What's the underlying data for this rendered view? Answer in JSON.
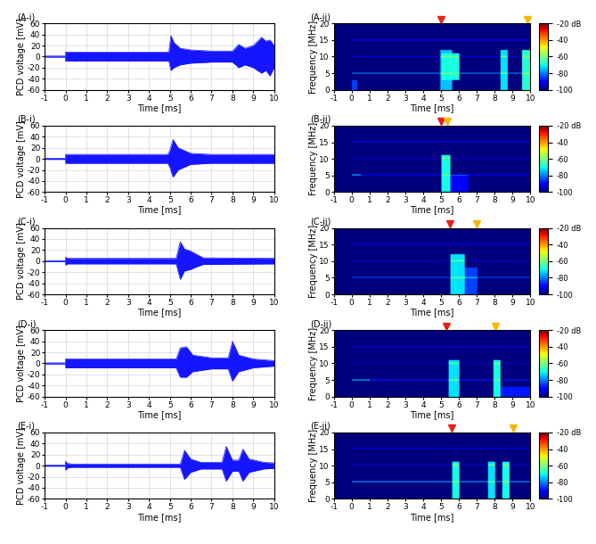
{
  "chart_data": [
    {
      "type": "area",
      "title": "(A-i)",
      "xlabel": "Time [ms]",
      "ylabel": "PCD voltage [mV]",
      "color": "#1515ff",
      "xlim": [
        -1,
        10
      ],
      "xticks": [
        -1,
        0,
        1,
        2,
        3,
        4,
        5,
        6,
        7,
        8,
        9,
        10
      ],
      "ylim": [
        -60,
        60
      ],
      "yticks": [
        -60,
        -40,
        -20,
        0,
        20,
        40,
        60
      ],
      "x": [
        -1,
        -0.01,
        0,
        4.95,
        5.05,
        5.2,
        5.5,
        6.0,
        7.0,
        8.0,
        8.3,
        8.6,
        9.0,
        9.4,
        9.6,
        9.8,
        10
      ],
      "upper": [
        1,
        1,
        8,
        8,
        38,
        25,
        15,
        12,
        10,
        10,
        22,
        15,
        20,
        35,
        28,
        30,
        20
      ],
      "lower": [
        -1,
        -1,
        -8,
        -8,
        -25,
        -20,
        -15,
        -12,
        -10,
        -10,
        -20,
        -15,
        -20,
        -30,
        -25,
        -35,
        -20
      ]
    },
    {
      "type": "heatmap",
      "title": "(A-ii)",
      "xlabel": "Time [ms]",
      "ylabel": "Frequency [MHz]",
      "xlim": [
        -1,
        10
      ],
      "xticks": [
        -1,
        0,
        1,
        2,
        3,
        4,
        5,
        6,
        7,
        8,
        9,
        10
      ],
      "ylim": [
        0,
        20
      ],
      "yticks": [
        0,
        5,
        10,
        15,
        20
      ],
      "background": -100,
      "colorbar": {
        "range": [
          -100,
          -20
        ],
        "ticks": [
          {
            "value": -20,
            "label": "-20 dB"
          },
          {
            "value": -40,
            "label": "-40"
          },
          {
            "value": -60,
            "label": "-60"
          },
          {
            "value": -80,
            "label": "-80"
          },
          {
            "value": -100,
            "label": "-100"
          }
        ]
      },
      "harmonics": [
        {
          "freq": 5,
          "start": 0,
          "end": 10,
          "level": -80
        },
        {
          "freq": 10,
          "start": 0,
          "end": 10,
          "level": -90
        },
        {
          "freq": 15,
          "start": 0,
          "end": 10,
          "level": -92
        }
      ],
      "bursts": [
        {
          "start": 0,
          "end": 0.3,
          "low": 0,
          "high": 3,
          "level": -85
        },
        {
          "start": 4.95,
          "end": 5.6,
          "low": 0,
          "high": 12,
          "level": -75
        },
        {
          "start": 5.0,
          "end": 6.0,
          "low": 3,
          "high": 11,
          "level": -70
        },
        {
          "start": 8.3,
          "end": 8.7,
          "low": 0,
          "high": 12,
          "level": -72
        },
        {
          "start": 9.5,
          "end": 10,
          "low": 0,
          "high": 12,
          "level": -68
        }
      ],
      "markers": [
        {
          "time": 5.0,
          "color": "#e8201a"
        },
        {
          "time": 9.85,
          "color": "#f5b800"
        }
      ]
    },
    {
      "type": "area",
      "title": "(B-i)",
      "xlabel": "Time [ms]",
      "ylabel": "PCD voltage [mV]",
      "color": "#1515ff",
      "xlim": [
        -1,
        10
      ],
      "xticks": [
        -1,
        0,
        1,
        2,
        3,
        4,
        5,
        6,
        7,
        8,
        9,
        10
      ],
      "ylim": [
        -60,
        60
      ],
      "yticks": [
        -60,
        -40,
        -20,
        0,
        20,
        40,
        60
      ],
      "x": [
        -1,
        -0.01,
        0,
        4.9,
        5.0,
        5.15,
        5.4,
        6.0,
        7,
        10
      ],
      "upper": [
        1,
        1,
        8,
        8,
        15,
        35,
        20,
        10,
        8,
        8
      ],
      "lower": [
        -1,
        -1,
        -8,
        -8,
        -15,
        -33,
        -20,
        -10,
        -8,
        -8
      ]
    },
    {
      "type": "heatmap",
      "title": "(B-ii)",
      "xlabel": "Time [ms]",
      "ylabel": "Frequency [MHz]",
      "xlim": [
        -1,
        10
      ],
      "xticks": [
        -1,
        0,
        1,
        2,
        3,
        4,
        5,
        6,
        7,
        8,
        9,
        10
      ],
      "ylim": [
        0,
        20
      ],
      "yticks": [
        0,
        5,
        10,
        15,
        20
      ],
      "background": -100,
      "colorbar": {
        "range": [
          -100,
          -20
        ],
        "ticks": [
          {
            "value": -20,
            "label": "-20 dB"
          },
          {
            "value": -40,
            "label": "-40"
          },
          {
            "value": -60,
            "label": "-60"
          },
          {
            "value": -80,
            "label": "-80"
          },
          {
            "value": -100,
            "label": "-100"
          }
        ]
      },
      "harmonics": [
        {
          "freq": 5,
          "start": 0,
          "end": 0.5,
          "level": -75
        },
        {
          "freq": 5,
          "start": 0.5,
          "end": 10,
          "level": -90
        },
        {
          "freq": 10,
          "start": 0,
          "end": 10,
          "level": -92
        },
        {
          "freq": 15,
          "start": 0,
          "end": 10,
          "level": -92
        }
      ],
      "bursts": [
        {
          "start": 5.0,
          "end": 5.5,
          "low": 0,
          "high": 11,
          "level": -70
        },
        {
          "start": 5.5,
          "end": 6.5,
          "low": 0,
          "high": 5,
          "level": -90
        }
      ],
      "markers": [
        {
          "time": 5.0,
          "color": "#e8201a"
        },
        {
          "time": 5.35,
          "color": "#f5b800"
        }
      ]
    },
    {
      "type": "area",
      "title": "(C-i)",
      "xlabel": "Time [ms]",
      "ylabel": "PCD voltage [mV]",
      "color": "#1515ff",
      "xlim": [
        -1,
        10
      ],
      "xticks": [
        -1,
        0,
        1,
        2,
        3,
        4,
        5,
        6,
        7,
        8,
        9,
        10
      ],
      "ylim": [
        -60,
        60
      ],
      "yticks": [
        -60,
        -40,
        -20,
        0,
        20,
        40,
        60
      ],
      "x": [
        -1,
        -0.01,
        0,
        0.1,
        5.3,
        5.5,
        5.7,
        6.0,
        6.3,
        6.6,
        10
      ],
      "upper": [
        1,
        1,
        7,
        5,
        5,
        35,
        22,
        18,
        12,
        6,
        5
      ],
      "lower": [
        -1,
        -1,
        -7,
        -5,
        -5,
        -33,
        -18,
        -15,
        -10,
        -6,
        -5
      ]
    },
    {
      "type": "heatmap",
      "title": "(C-ii)",
      "xlabel": "Time [ms]",
      "ylabel": "Frequency [MHz]",
      "xlim": [
        -1,
        10
      ],
      "xticks": [
        -1,
        0,
        1,
        2,
        3,
        4,
        5,
        6,
        7,
        8,
        9,
        10
      ],
      "ylim": [
        0,
        20
      ],
      "yticks": [
        0,
        5,
        10,
        15,
        20
      ],
      "background": -100,
      "colorbar": {
        "range": [
          -100,
          -20
        ],
        "ticks": [
          {
            "value": -20,
            "label": "-20 dB"
          },
          {
            "value": -40,
            "label": "-40"
          },
          {
            "value": -60,
            "label": "-60"
          },
          {
            "value": -80,
            "label": "-80"
          },
          {
            "value": -100,
            "label": "-100"
          }
        ]
      },
      "harmonics": [
        {
          "freq": 5,
          "start": 0,
          "end": 10,
          "level": -85
        },
        {
          "freq": 10,
          "start": 0,
          "end": 10,
          "level": -93
        },
        {
          "freq": 15,
          "start": 0,
          "end": 10,
          "level": -93
        }
      ],
      "bursts": [
        {
          "start": 5.5,
          "end": 6.3,
          "low": 0,
          "high": 12,
          "level": -72
        },
        {
          "start": 6.3,
          "end": 7.0,
          "low": 0,
          "high": 8,
          "level": -85
        }
      ],
      "markers": [
        {
          "time": 5.5,
          "color": "#e8201a"
        },
        {
          "time": 7.0,
          "color": "#f5b800"
        }
      ]
    },
    {
      "type": "area",
      "title": "(D-i)",
      "xlabel": "Time [ms]",
      "ylabel": "PCD voltage [mV]",
      "color": "#1515ff",
      "xlim": [
        -1,
        10
      ],
      "xticks": [
        -1,
        0,
        1,
        2,
        3,
        4,
        5,
        6,
        7,
        8,
        9,
        10
      ],
      "ylim": [
        -60,
        60
      ],
      "yticks": [
        -60,
        -40,
        -20,
        0,
        20,
        40,
        60
      ],
      "x": [
        -1,
        -0.01,
        0,
        5.3,
        5.5,
        5.8,
        6.1,
        7.0,
        7.8,
        8.0,
        8.3,
        9,
        10
      ],
      "upper": [
        1,
        1,
        8,
        8,
        28,
        30,
        15,
        10,
        10,
        40,
        15,
        8,
        5
      ],
      "lower": [
        -1,
        -1,
        -8,
        -8,
        -25,
        -25,
        -15,
        -10,
        -10,
        -32,
        -15,
        -8,
        -5
      ]
    },
    {
      "type": "heatmap",
      "title": "(D-ii)",
      "xlabel": "Time [ms]",
      "ylabel": "Frequency [MHz]",
      "xlim": [
        -1,
        10
      ],
      "xticks": [
        -1,
        0,
        1,
        2,
        3,
        4,
        5,
        6,
        7,
        8,
        9,
        10
      ],
      "ylim": [
        0,
        20
      ],
      "yticks": [
        0,
        5,
        10,
        15,
        20
      ],
      "background": -100,
      "colorbar": {
        "range": [
          -100,
          -20
        ],
        "ticks": [
          {
            "value": -20,
            "label": "-20 dB"
          },
          {
            "value": -40,
            "label": "-40"
          },
          {
            "value": -60,
            "label": "-60"
          },
          {
            "value": -80,
            "label": "-80"
          },
          {
            "value": -100,
            "label": "-100"
          }
        ]
      },
      "harmonics": [
        {
          "freq": 5,
          "start": 0,
          "end": 1,
          "level": -75
        },
        {
          "freq": 5,
          "start": 1,
          "end": 10,
          "level": -88
        },
        {
          "freq": 10,
          "start": 0,
          "end": 10,
          "level": -93
        },
        {
          "freq": 15,
          "start": 0,
          "end": 10,
          "level": -93
        }
      ],
      "bursts": [
        {
          "start": 5.4,
          "end": 6.0,
          "low": 0,
          "high": 11,
          "level": -72
        },
        {
          "start": 7.9,
          "end": 8.3,
          "low": 0,
          "high": 11,
          "level": -70
        },
        {
          "start": 8.3,
          "end": 10,
          "low": 0,
          "high": 3,
          "level": -88
        }
      ],
      "markers": [
        {
          "time": 5.3,
          "color": "#e8201a"
        },
        {
          "time": 8.05,
          "color": "#f5b800"
        }
      ]
    },
    {
      "type": "area",
      "title": "(E-i)",
      "xlabel": "Time [ms]",
      "ylabel": "PCD voltage [mV]",
      "color": "#1515ff",
      "xlim": [
        -1,
        10
      ],
      "xticks": [
        -1,
        0,
        1,
        2,
        3,
        4,
        5,
        6,
        7,
        8,
        9,
        10
      ],
      "ylim": [
        -60,
        60
      ],
      "yticks": [
        -60,
        -40,
        -20,
        0,
        20,
        40,
        60
      ],
      "x": [
        -1,
        -0.01,
        0,
        0.1,
        0.3,
        5.5,
        5.7,
        6.0,
        6.5,
        7.5,
        7.7,
        8.0,
        8.3,
        8.5,
        8.8,
        9.5,
        10
      ],
      "upper": [
        1,
        1,
        8,
        4,
        3,
        3,
        28,
        12,
        6,
        6,
        35,
        10,
        10,
        30,
        12,
        6,
        5
      ],
      "lower": [
        -1,
        -1,
        -8,
        -4,
        -3,
        -3,
        -25,
        -12,
        -6,
        -6,
        -28,
        -10,
        -10,
        -28,
        -12,
        -6,
        -5
      ]
    },
    {
      "type": "heatmap",
      "title": "(E-ii)",
      "xlabel": "Time [ms]",
      "ylabel": "Frequency [MHz]",
      "xlim": [
        -1,
        10
      ],
      "xticks": [
        -1,
        0,
        1,
        2,
        3,
        4,
        5,
        6,
        7,
        8,
        9,
        10
      ],
      "ylim": [
        0,
        20
      ],
      "yticks": [
        0,
        5,
        10,
        15,
        20
      ],
      "background": -100,
      "colorbar": {
        "range": [
          -100,
          -20
        ],
        "ticks": [
          {
            "value": -20,
            "label": "-20 dB"
          },
          {
            "value": -40,
            "label": "-40"
          },
          {
            "value": -60,
            "label": "-60"
          },
          {
            "value": -80,
            "label": "-80"
          },
          {
            "value": -100,
            "label": "-100"
          }
        ]
      },
      "harmonics": [
        {
          "freq": 5,
          "start": 0,
          "end": 10,
          "level": -78
        },
        {
          "freq": 10,
          "start": 0,
          "end": 10,
          "level": -92
        },
        {
          "freq": 15,
          "start": 0,
          "end": 10,
          "level": -93
        }
      ],
      "bursts": [
        {
          "start": 5.6,
          "end": 6.0,
          "low": 0,
          "high": 11,
          "level": -70
        },
        {
          "start": 7.6,
          "end": 8.0,
          "low": 0,
          "high": 11,
          "level": -72
        },
        {
          "start": 8.4,
          "end": 8.8,
          "low": 0,
          "high": 11,
          "level": -70
        }
      ],
      "markers": [
        {
          "time": 5.6,
          "color": "#e8201a"
        },
        {
          "time": 9.05,
          "color": "#f5b800"
        }
      ]
    }
  ]
}
